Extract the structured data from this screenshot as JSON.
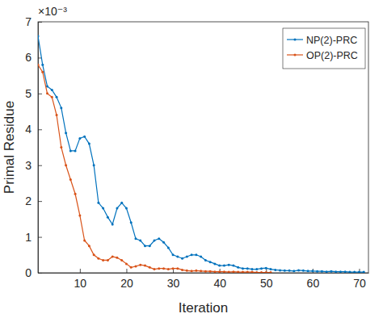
{
  "chart_data": {
    "type": "line",
    "x_label": "Iteration",
    "y_label": "Primal Residue",
    "annotations": [
      "×10⁻³"
    ],
    "x": [
      1,
      2,
      3,
      4,
      5,
      6,
      7,
      8,
      9,
      10,
      11,
      12,
      13,
      14,
      15,
      16,
      17,
      18,
      19,
      20,
      21,
      22,
      23,
      24,
      25,
      26,
      27,
      28,
      29,
      30,
      31,
      32,
      33,
      34,
      35,
      36,
      37,
      38,
      39,
      40,
      41,
      42,
      43,
      44,
      45,
      46,
      47,
      48,
      49,
      50,
      51,
      52,
      53,
      54,
      55,
      56,
      57,
      58,
      59,
      60,
      61,
      62,
      63,
      64,
      65,
      66,
      67,
      68,
      69,
      70,
      71
    ],
    "series": [
      {
        "name": "NP(2)-PRC",
        "color": "#0072bd",
        "marker": "dot",
        "line_style": "solid",
        "values": [
          6.6,
          5.8,
          5.2,
          5.1,
          4.9,
          4.6,
          3.9,
          3.4,
          3.4,
          3.75,
          3.8,
          3.6,
          3.0,
          1.95,
          1.8,
          1.55,
          1.35,
          1.8,
          1.95,
          1.8,
          1.4,
          0.95,
          0.9,
          0.75,
          0.75,
          0.9,
          0.95,
          0.85,
          0.7,
          0.5,
          0.45,
          0.4,
          0.45,
          0.5,
          0.5,
          0.45,
          0.35,
          0.3,
          0.25,
          0.2,
          0.2,
          0.22,
          0.2,
          0.15,
          0.12,
          0.12,
          0.1,
          0.1,
          0.12,
          0.13,
          0.1,
          0.08,
          0.07,
          0.06,
          0.06,
          0.05,
          0.07,
          0.06,
          0.05,
          0.05,
          0.04,
          0.04,
          0.03,
          0.04,
          0.03,
          0.03,
          0.03,
          0.02,
          0.02,
          0.02,
          0.02
        ]
      },
      {
        "name": "OP(2)-PRC",
        "color": "#d95319",
        "marker": "dot",
        "line_style": "solid",
        "values": [
          5.8,
          5.6,
          5.0,
          4.9,
          4.4,
          3.5,
          3.0,
          2.6,
          2.2,
          1.6,
          0.9,
          0.75,
          0.5,
          0.4,
          0.35,
          0.35,
          0.45,
          0.42,
          0.35,
          0.25,
          0.15,
          0.18,
          0.22,
          0.2,
          0.15,
          0.1,
          0.12,
          0.12,
          0.1,
          0.12,
          0.12,
          0.08,
          0.06,
          0.05,
          0.06,
          0.05,
          0.04,
          0.04,
          0.03,
          0.03,
          0.03,
          0.02,
          0.03,
          0.02,
          0.02,
          0.02,
          0.02,
          0.01,
          0.01,
          0.01,
          0.01,
          null,
          null,
          null,
          null,
          null,
          null,
          null,
          null,
          null,
          null,
          null,
          null,
          null,
          null,
          null,
          null,
          null,
          null,
          null,
          null
        ]
      }
    ],
    "xlim": [
      1,
      72
    ],
    "xticks": [
      10,
      20,
      30,
      40,
      50,
      60,
      70
    ],
    "ylim": [
      0,
      7
    ],
    "yticks": [
      0,
      1,
      2,
      3,
      4,
      5,
      6,
      7
    ],
    "grid": false,
    "legend": "top-right"
  }
}
